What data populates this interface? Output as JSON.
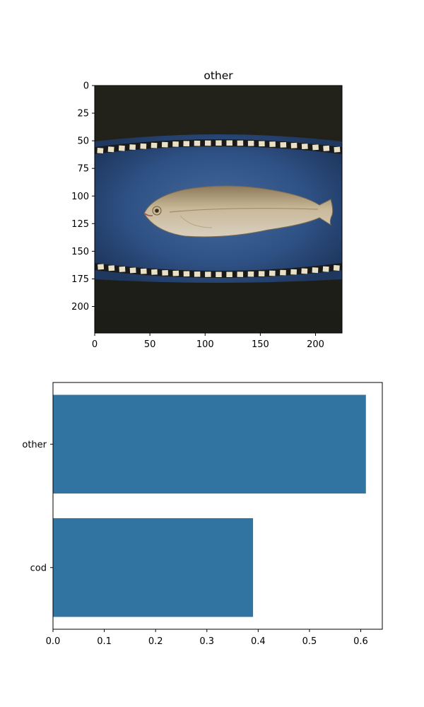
{
  "chart_data": [
    {
      "type": "image",
      "title": "other",
      "xlim": [
        0,
        224
      ],
      "ylim": [
        224,
        0
      ],
      "xticks": [
        0,
        50,
        100,
        150,
        200
      ],
      "yticks": [
        0,
        25,
        50,
        75,
        100,
        125,
        150,
        175,
        200
      ],
      "image_content": "fish-on-blue-tray-photo"
    },
    {
      "type": "bar",
      "orientation": "horizontal",
      "categories": [
        "other",
        "cod"
      ],
      "values": [
        0.61,
        0.39
      ],
      "xlim": [
        0,
        0.642
      ],
      "xticks": [
        "0.0",
        "0.1",
        "0.2",
        "0.3",
        "0.4",
        "0.5",
        "0.6"
      ],
      "bar_color": "#3274a1",
      "grid": false
    }
  ]
}
